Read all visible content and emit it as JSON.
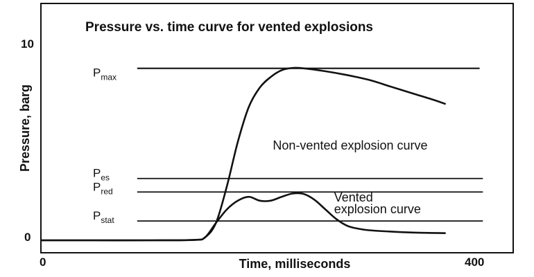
{
  "chart_data": {
    "type": "line",
    "title": "Pressure vs. time curve for vented explosions",
    "xlabel": "Time, milliseconds",
    "ylabel": "Pressure, barg",
    "xlim": [
      0,
      400
    ],
    "ylim": [
      0,
      10
    ],
    "x_tick_labels": [
      "0",
      "400"
    ],
    "y_tick_labels": [
      "0",
      "10"
    ],
    "grid": false,
    "reference_lines": [
      {
        "label_main": "P",
        "label_sub": "max",
        "y": 8.9,
        "x_start": 88,
        "x_end": 401
      },
      {
        "label_main": "P",
        "label_sub": "es",
        "y": 3.2,
        "x_start": 88,
        "x_end": 404
      },
      {
        "label_main": "P",
        "label_sub": "red",
        "y": 2.5,
        "x_start": 88,
        "x_end": 404
      },
      {
        "label_main": "P",
        "label_sub": "stat",
        "y": 1.0,
        "x_start": 88,
        "x_end": 404
      }
    ],
    "series": [
      {
        "x": [
          0,
          50,
          100,
          140,
          150,
          160,
          170,
          180,
          190,
          200,
          210,
          220,
          230,
          240,
          260,
          280,
          300,
          320,
          340,
          360,
          370
        ],
        "y": [
          0,
          0,
          0,
          0.02,
          0.15,
          0.9,
          2.8,
          5.1,
          6.9,
          7.9,
          8.45,
          8.8,
          8.92,
          8.9,
          8.75,
          8.55,
          8.3,
          7.95,
          7.6,
          7.25,
          7.05
        ]
      },
      {
        "x": [
          0,
          50,
          100,
          140,
          150,
          160,
          170,
          180,
          190,
          200,
          210,
          220,
          230,
          240,
          250,
          260,
          270,
          280,
          290,
          300,
          320,
          340,
          360,
          370
        ],
        "y": [
          0,
          0,
          0,
          0.02,
          0.15,
          0.9,
          1.6,
          2.05,
          2.25,
          2.05,
          2.05,
          2.25,
          2.42,
          2.4,
          2.1,
          1.6,
          1.1,
          0.75,
          0.6,
          0.52,
          0.45,
          0.4,
          0.38,
          0.37
        ]
      }
    ],
    "annotations": [
      {
        "text": "Non-vented explosion curve",
        "x": 212,
        "y": 4.7
      },
      {
        "text": "Vented",
        "x": 268,
        "y": 2.0
      },
      {
        "text": "explosion curve",
        "x": 268,
        "y": 1.4
      }
    ]
  }
}
